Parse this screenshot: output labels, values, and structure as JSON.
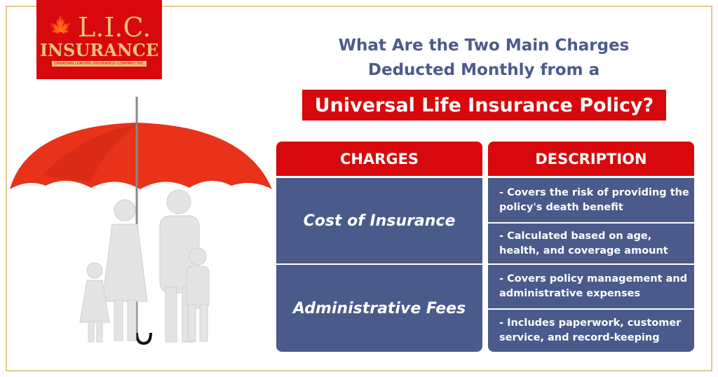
{
  "logo": {
    "line1": "L.I.C.",
    "line2": "INSURANCE",
    "tagline": "CANADIAN LEADING INSURANCE COMPANY INC.",
    "icon": "maple-leaf-family-icon"
  },
  "title": {
    "line1": "What Are the Two Main Charges",
    "line2": "Deducted Monthly from a",
    "highlight": "Universal Life Insurance Policy?"
  },
  "table": {
    "headers": [
      "CHARGES",
      "DESCRIPTION"
    ],
    "rows": [
      {
        "charge": "Cost of Insurance",
        "descriptions": [
          "- Covers the risk of providing the policy's death benefit",
          "- Calculated based on age, health, and coverage amount"
        ]
      },
      {
        "charge": "Administrative Fees",
        "descriptions": [
          "- Covers policy management and administrative expenses",
          "- Includes paperwork, customer service, and record-keeping"
        ]
      }
    ]
  },
  "colors": {
    "red": "#d7090c",
    "navy": "#4a5a8b",
    "title": "#4b5b8c",
    "gold": "#e9c27a"
  }
}
